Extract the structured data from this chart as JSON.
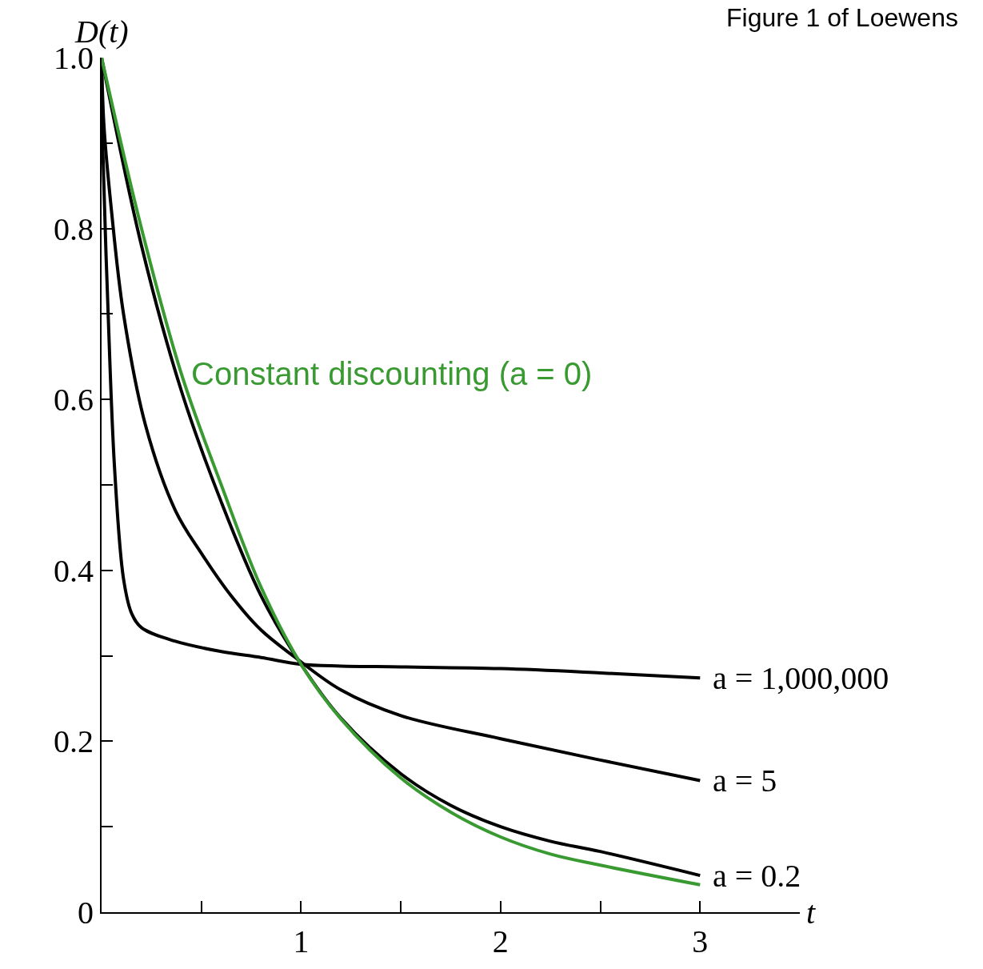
{
  "chart_data": {
    "type": "line",
    "xlabel": "t",
    "ylabel": "D(t)",
    "xlim": [
      0,
      3.5
    ],
    "ylim": [
      0,
      1.0
    ],
    "xticks": [
      {
        "value": 0.5,
        "label": null
      },
      1,
      {
        "value": 1.5,
        "label": null
      },
      2,
      {
        "value": 2.5,
        "label": null
      },
      3
    ],
    "yticks": [
      0,
      {
        "value": 0.1,
        "label": null
      },
      0.2,
      {
        "value": 0.3,
        "label": null
      },
      0.4,
      {
        "value": 0.5,
        "label": null
      },
      0.6,
      {
        "value": 0.7,
        "label": null
      },
      0.8,
      {
        "value": 0.9,
        "label": null
      },
      {
        "value": 1.0,
        "label": "1.0"
      }
    ],
    "legend": false,
    "marker": "none",
    "line_style": "solid",
    "series": [
      {
        "name": "a = 1,000,000",
        "color": "#000000",
        "x": [
          0,
          0.005,
          0.03,
          0.065,
          0.11,
          0.15,
          0.2,
          0.37,
          0.6,
          0.8,
          1.0,
          1.2,
          1.5,
          2.0,
          2.5,
          3.0
        ],
        "values": [
          1.0,
          0.9,
          0.72,
          0.52,
          0.39,
          0.35,
          0.333,
          0.317,
          0.305,
          0.298,
          0.29,
          0.288,
          0.287,
          0.285,
          0.28,
          0.274
        ]
      },
      {
        "name": "a = 5",
        "color": "#000000",
        "x": [
          0,
          0.012,
          0.05,
          0.11,
          0.22,
          0.37,
          0.5,
          0.65,
          0.8,
          0.96,
          1.2,
          1.5,
          2.0,
          2.5,
          3.0
        ],
        "values": [
          1.0,
          0.92,
          0.82,
          0.7,
          0.57,
          0.47,
          0.42,
          0.37,
          0.33,
          0.3,
          0.26,
          0.23,
          0.203,
          0.178,
          0.154
        ]
      },
      {
        "name": "a = 0.2",
        "color": "#000000",
        "x": [
          0,
          0.2,
          0.4,
          0.6,
          0.8,
          1.0,
          1.2,
          1.5,
          1.75,
          2.0,
          2.25,
          2.5,
          3.0
        ],
        "values": [
          1.0,
          0.78,
          0.61,
          0.48,
          0.37,
          0.29,
          0.227,
          0.162,
          0.125,
          0.1,
          0.083,
          0.071,
          0.043
        ]
      },
      {
        "name": "Constant discounting (a = 0)",
        "color": "#3a9a32",
        "x": [
          0,
          0.2,
          0.4,
          0.6,
          0.8,
          1.0,
          1.2,
          1.5,
          1.75,
          2.0,
          2.25,
          2.5,
          3.0
        ],
        "values": [
          1.0,
          0.8,
          0.63,
          0.5,
          0.38,
          0.29,
          0.226,
          0.157,
          0.117,
          0.088,
          0.068,
          0.055,
          0.032
        ]
      }
    ],
    "annotations": [
      "Figure 1 of Loewens"
    ]
  }
}
